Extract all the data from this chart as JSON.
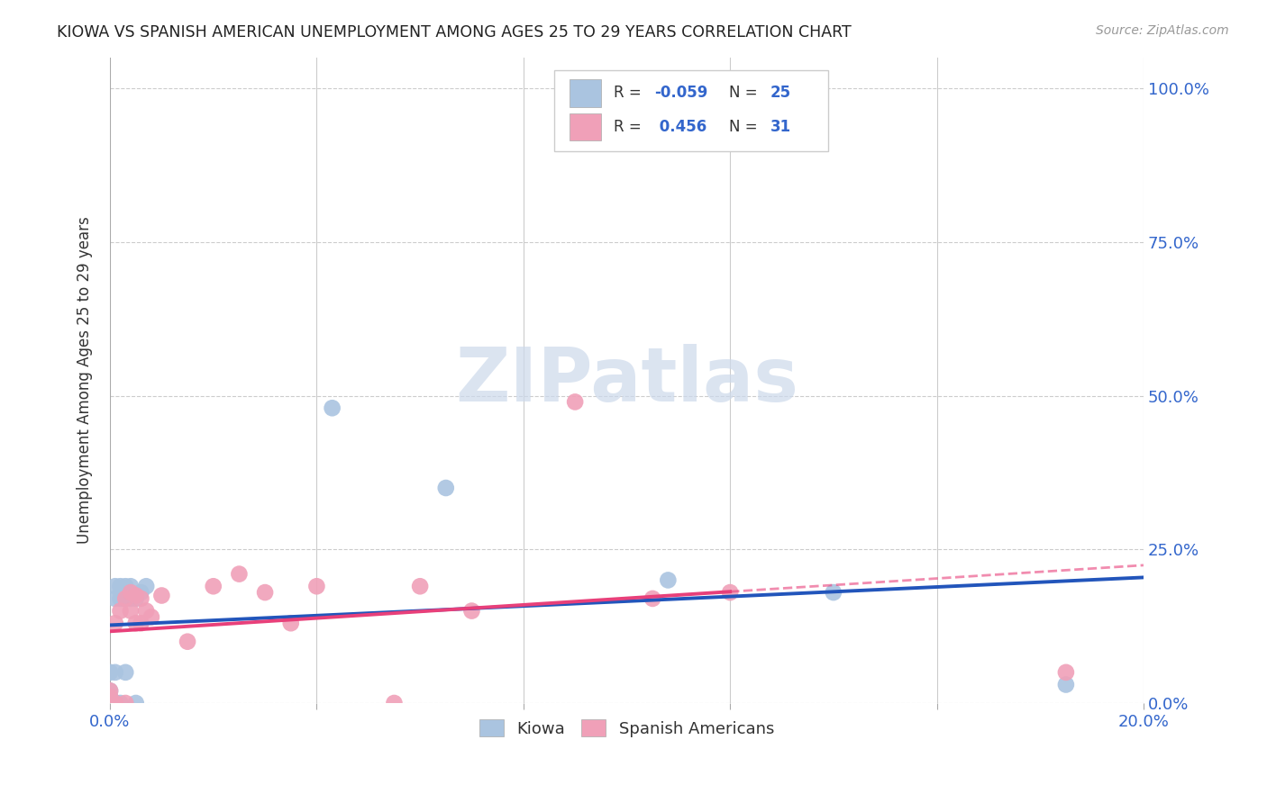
{
  "title": "KIOWA VS SPANISH AMERICAN UNEMPLOYMENT AMONG AGES 25 TO 29 YEARS CORRELATION CHART",
  "source": "Source: ZipAtlas.com",
  "ylabel": "Unemployment Among Ages 25 to 29 years",
  "xlim": [
    0.0,
    0.2
  ],
  "ylim": [
    0.0,
    1.05
  ],
  "xticks": [
    0.0,
    0.04,
    0.08,
    0.12,
    0.16,
    0.2
  ],
  "yticks": [
    0.0,
    0.25,
    0.5,
    0.75,
    1.0
  ],
  "background_color": "#ffffff",
  "grid_color": "#cccccc",
  "kiowa_color": "#aac4e0",
  "spanish_color": "#f0a0b8",
  "kiowa_line_color": "#2255bb",
  "spanish_line_color": "#e8407a",
  "kiowa_R": -0.059,
  "kiowa_N": 25,
  "spanish_R": 0.456,
  "spanish_N": 31,
  "kiowa_x": [
    0.0,
    0.0,
    0.0,
    0.0,
    0.001,
    0.001,
    0.001,
    0.001,
    0.002,
    0.002,
    0.002,
    0.003,
    0.003,
    0.003,
    0.004,
    0.004,
    0.005,
    0.005,
    0.006,
    0.007,
    0.043,
    0.065,
    0.108,
    0.14,
    0.185
  ],
  "kiowa_y": [
    0.0,
    0.01,
    0.02,
    0.05,
    0.0,
    0.05,
    0.17,
    0.19,
    0.0,
    0.17,
    0.19,
    0.05,
    0.17,
    0.19,
    0.17,
    0.19,
    0.17,
    0.0,
    0.18,
    0.19,
    0.48,
    0.35,
    0.2,
    0.18,
    0.03
  ],
  "spanish_x": [
    0.0,
    0.0,
    0.0,
    0.0,
    0.001,
    0.001,
    0.002,
    0.003,
    0.003,
    0.004,
    0.004,
    0.005,
    0.005,
    0.006,
    0.006,
    0.007,
    0.008,
    0.01,
    0.015,
    0.02,
    0.025,
    0.03,
    0.035,
    0.04,
    0.055,
    0.06,
    0.07,
    0.09,
    0.105,
    0.12,
    0.185
  ],
  "spanish_y": [
    0.0,
    0.0,
    0.01,
    0.02,
    0.0,
    0.13,
    0.15,
    0.0,
    0.17,
    0.15,
    0.18,
    0.13,
    0.175,
    0.13,
    0.17,
    0.15,
    0.14,
    0.175,
    0.1,
    0.19,
    0.21,
    0.18,
    0.13,
    0.19,
    0.0,
    0.19,
    0.15,
    0.49,
    0.17,
    0.18,
    0.05
  ],
  "watermark_text": "ZIPatlas",
  "watermark_color": "#ccd9eb",
  "legend_R1_label": "R = ",
  "legend_R1_val": "-0.059",
  "legend_N1_label": "N = ",
  "legend_N1_val": "25",
  "legend_R2_label": "R =  ",
  "legend_R2_val": "0.456",
  "legend_N2_label": "N = ",
  "legend_N2_val": "31",
  "label_color": "#3366cc",
  "text_color": "#222222"
}
